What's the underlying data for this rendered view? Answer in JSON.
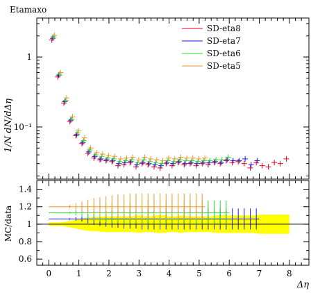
{
  "chart_data": {
    "title": "Etamaxo",
    "main": {
      "type": "scatter",
      "ylabel": "1/N dN/dΔη",
      "yscale": "log",
      "ylim": [
        0.018,
        3.6
      ],
      "yticks": [
        {
          "value": 0.1,
          "label": "10⁻¹"
        },
        {
          "value": 1,
          "label": "1"
        }
      ],
      "legend_position": "top-right",
      "series": [
        {
          "name": "SD-eta8",
          "color": "#e8001c",
          "offset": 0.0,
          "x": [
            0.1,
            0.3,
            0.5,
            0.7,
            0.9,
            1.1,
            1.3,
            1.5,
            1.7,
            1.9,
            2.1,
            2.3,
            2.5,
            2.7,
            2.9,
            3.1,
            3.3,
            3.5,
            3.7,
            3.9,
            4.1,
            4.3,
            4.5,
            4.7,
            4.9,
            5.1,
            5.3,
            5.5,
            5.7,
            5.9,
            6.1,
            6.3,
            6.5,
            6.7,
            6.9,
            7.1,
            7.3,
            7.5,
            7.7,
            7.9
          ],
          "y": [
            1.75,
            0.52,
            0.22,
            0.12,
            0.075,
            0.058,
            0.042,
            0.036,
            0.034,
            0.033,
            0.032,
            0.028,
            0.029,
            0.031,
            0.027,
            0.03,
            0.029,
            0.027,
            0.026,
            0.03,
            0.028,
            0.031,
            0.029,
            0.03,
            0.028,
            0.03,
            0.029,
            0.031,
            0.03,
            0.033,
            0.031,
            0.032,
            0.03,
            0.026,
            0.031,
            0.028,
            0.027,
            0.031,
            0.03,
            0.035
          ]
        },
        {
          "name": "SD-eta7",
          "color": "#1a1ae6",
          "offset": 0.03,
          "x": [
            0.1,
            0.3,
            0.5,
            0.7,
            0.9,
            1.1,
            1.3,
            1.5,
            1.7,
            1.9,
            2.1,
            2.3,
            2.5,
            2.7,
            2.9,
            3.1,
            3.3,
            3.5,
            3.7,
            3.9,
            4.1,
            4.3,
            4.5,
            4.7,
            4.9,
            5.1,
            5.3,
            5.5,
            5.7,
            5.9,
            6.1,
            6.3,
            6.5,
            6.7,
            6.9
          ],
          "y": [
            1.85,
            0.55,
            0.23,
            0.125,
            0.078,
            0.06,
            0.044,
            0.038,
            0.035,
            0.034,
            0.033,
            0.03,
            0.031,
            0.032,
            0.029,
            0.031,
            0.03,
            0.029,
            0.028,
            0.031,
            0.03,
            0.032,
            0.03,
            0.031,
            0.03,
            0.031,
            0.031,
            0.032,
            0.031,
            0.034,
            0.033,
            0.033,
            0.035,
            0.029,
            0.033
          ]
        },
        {
          "name": "SD-eta6",
          "color": "#28dc28",
          "offset": 0.06,
          "x": [
            0.1,
            0.3,
            0.5,
            0.7,
            0.9,
            1.1,
            1.3,
            1.5,
            1.7,
            1.9,
            2.1,
            2.3,
            2.5,
            2.7,
            2.9,
            3.1,
            3.3,
            3.5,
            3.7,
            3.9,
            4.1,
            4.3,
            4.5,
            4.7,
            4.9,
            5.1,
            5.3,
            5.5,
            5.7,
            5.9
          ],
          "y": [
            1.95,
            0.57,
            0.24,
            0.13,
            0.082,
            0.064,
            0.047,
            0.04,
            0.038,
            0.036,
            0.035,
            0.032,
            0.033,
            0.034,
            0.031,
            0.034,
            0.032,
            0.031,
            0.03,
            0.033,
            0.032,
            0.034,
            0.033,
            0.033,
            0.032,
            0.033,
            0.033,
            0.034,
            0.034,
            0.037
          ]
        },
        {
          "name": "SD-eta5",
          "color": "#f09628",
          "offset": 0.09,
          "x": [
            0.1,
            0.3,
            0.5,
            0.7,
            0.9,
            1.1,
            1.3,
            1.5,
            1.7,
            1.9,
            2.1,
            2.3,
            2.5,
            2.7,
            2.9,
            3.1,
            3.3,
            3.5,
            3.7,
            3.9,
            4.1,
            4.3,
            4.5,
            4.7,
            4.9,
            5.1
          ],
          "y": [
            2.05,
            0.6,
            0.26,
            0.14,
            0.088,
            0.07,
            0.05,
            0.043,
            0.041,
            0.039,
            0.038,
            0.035,
            0.036,
            0.037,
            0.034,
            0.037,
            0.035,
            0.034,
            0.033,
            0.036,
            0.035,
            0.037,
            0.036,
            0.036,
            0.035,
            0.036
          ]
        }
      ]
    },
    "ratio": {
      "type": "scatter",
      "ylabel": "MC/data",
      "ylim": [
        0.53,
        1.5
      ],
      "yticks": [
        {
          "value": 0.6,
          "label": "0.6"
        },
        {
          "value": 0.8,
          "label": "0.8"
        },
        {
          "value": 1.0,
          "label": "1"
        },
        {
          "value": 1.2,
          "label": "1.2"
        },
        {
          "value": 1.4,
          "label": "1.4"
        }
      ],
      "reference_line": 1.0,
      "band": {
        "color": "#ffff00",
        "x": [
          0.0,
          0.2,
          0.4,
          0.6,
          0.8,
          1.0,
          1.2,
          1.4,
          1.6,
          1.8,
          2.0,
          2.2,
          2.4,
          2.6,
          2.8,
          3.0,
          3.2,
          3.4,
          3.6,
          3.8,
          4.0,
          4.2,
          4.4,
          4.6,
          4.8,
          5.0,
          5.2,
          5.4,
          5.6,
          5.8,
          6.0,
          6.2,
          6.4,
          6.6,
          6.8,
          7.0,
          7.2,
          7.4,
          7.6,
          7.8,
          8.0
        ],
        "half_width": [
          0.02,
          0.02,
          0.02,
          0.03,
          0.04,
          0.06,
          0.07,
          0.08,
          0.08,
          0.09,
          0.09,
          0.09,
          0.09,
          0.09,
          0.09,
          0.1,
          0.09,
          0.09,
          0.1,
          0.1,
          0.09,
          0.09,
          0.1,
          0.09,
          0.09,
          0.09,
          0.09,
          0.09,
          0.1,
          0.1,
          0.1,
          0.1,
          0.1,
          0.1,
          0.1,
          0.11,
          0.11,
          0.11,
          0.11,
          0.11,
          0.11
        ]
      },
      "series": [
        {
          "name": "SD-eta7",
          "color": "#1a1ae6",
          "x0": 0.1,
          "dx": 0.2,
          "n": 35,
          "value": 1.06,
          "err": [
            0.0,
            0.0,
            0.0,
            0.01,
            0.02,
            0.03,
            0.05,
            0.07,
            0.08,
            0.09,
            0.1,
            0.1,
            0.11,
            0.11,
            0.11,
            0.12,
            0.12,
            0.12,
            0.12,
            0.12,
            0.12,
            0.12,
            0.12,
            0.12,
            0.12,
            0.12,
            0.12,
            0.12,
            0.12,
            0.12,
            0.12,
            0.12,
            0.12,
            0.12,
            0.12
          ]
        },
        {
          "name": "SD-eta6",
          "color": "#28dc28",
          "x0": 0.1,
          "dx": 0.2,
          "n": 30,
          "value": 1.13,
          "err": [
            0.0,
            0.0,
            0.0,
            0.01,
            0.03,
            0.05,
            0.07,
            0.09,
            0.1,
            0.11,
            0.12,
            0.12,
            0.13,
            0.13,
            0.13,
            0.14,
            0.14,
            0.14,
            0.14,
            0.14,
            0.14,
            0.14,
            0.14,
            0.14,
            0.14,
            0.14,
            0.14,
            0.14,
            0.14,
            0.14
          ]
        },
        {
          "name": "SD-eta5",
          "color": "#f09628",
          "x0": 0.1,
          "dx": 0.2,
          "n": 26,
          "value": 1.2,
          "err": [
            0.0,
            0.0,
            0.0,
            0.02,
            0.04,
            0.06,
            0.08,
            0.1,
            0.11,
            0.12,
            0.13,
            0.14,
            0.14,
            0.15,
            0.15,
            0.15,
            0.15,
            0.15,
            0.15,
            0.15,
            0.15,
            0.15,
            0.15,
            0.15,
            0.15,
            0.15
          ]
        }
      ]
    },
    "xaxis": {
      "label": "Δη",
      "xlim": [
        -0.4,
        8.65
      ],
      "ticks": [
        0,
        1,
        2,
        3,
        4,
        5,
        6,
        7,
        8
      ],
      "tick_labels": [
        "0",
        "1",
        "2",
        "3",
        "4",
        "5",
        "6",
        "7",
        "8"
      ]
    }
  }
}
